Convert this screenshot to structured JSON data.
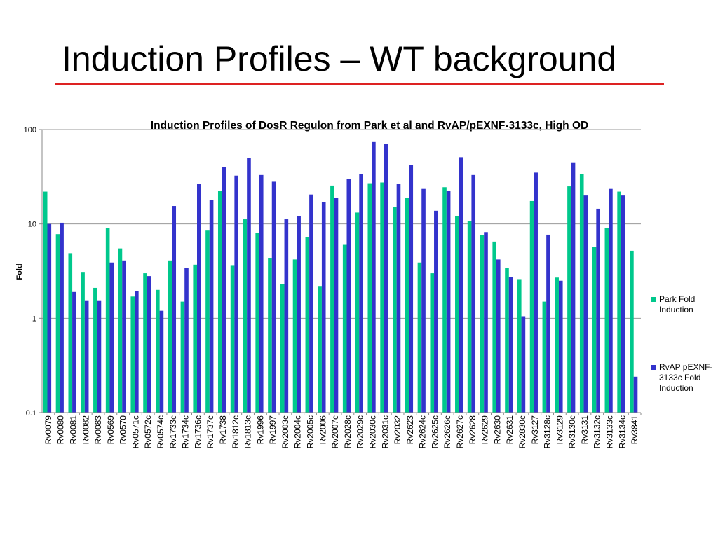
{
  "slide": {
    "title": "Induction Profiles – WT background"
  },
  "colors": {
    "title_rule": "#dd2222",
    "series_park": "#00c88c",
    "series_rvap": "#3333cc",
    "grid": "#999999"
  },
  "chart_data": {
    "type": "bar",
    "title": "Induction Profiles of DosR Regulon from Park et al and RvAP/pEXNF-3133c, High OD",
    "ylabel": "Fold",
    "xlabel": "",
    "yscale": "log",
    "ylim": [
      0.1,
      100
    ],
    "yticks": [
      "0.1",
      "1",
      "10",
      "100"
    ],
    "ytick_values": [
      0.1,
      1,
      10,
      100
    ],
    "grid": true,
    "legend_position": "right",
    "categories": [
      "Rv0079",
      "Rv0080",
      "Rv0081",
      "Rv0082",
      "Rv0083",
      "Rv0569",
      "Rv0570",
      "Rv0571c",
      "Rv0572c",
      "Rv0574c",
      "Rv1733c",
      "Rv1734c",
      "Rv1736c",
      "Rv1737c",
      "Rv1738",
      "Rv1812c",
      "Rv1813c",
      "Rv1996",
      "Rv1997",
      "Rv2003c",
      "Rv2004c",
      "Rv2005c",
      "Rv2006",
      "Rv2007c",
      "Rv2028c",
      "Rv2029c",
      "Rv2030c",
      "Rv2031c",
      "Rv2032",
      "Rv2623",
      "Rv2624c",
      "Rv2625c",
      "Rv2626c",
      "Rv2627c",
      "Rv2628",
      "Rv2629",
      "Rv2630",
      "Rv2631",
      "Rv2830c",
      "Rv3127",
      "Rv3128c",
      "Rv3129",
      "Rv3130c",
      "Rv3131",
      "Rv3132c",
      "Rv3133c",
      "Rv3134c",
      "Rv3841"
    ],
    "series": [
      {
        "name": "Park Fold Induction",
        "values": [
          22,
          7.8,
          4.9,
          3.1,
          2.1,
          9.0,
          5.5,
          1.7,
          3.0,
          2.0,
          4.1,
          1.5,
          3.7,
          8.5,
          22.5,
          3.6,
          11.2,
          8.0,
          4.3,
          2.3,
          4.2,
          7.3,
          2.2,
          25.5,
          6.0,
          13.2,
          27.0,
          27.5,
          15.0,
          19.0,
          3.9,
          3.0,
          24.5,
          12.2,
          10.7,
          7.6,
          6.5,
          3.4,
          2.6,
          17.5,
          1.5,
          2.7,
          25.0,
          34.0,
          5.7,
          9.0,
          22.0,
          5.2
        ]
      },
      {
        "name": "RvAP pEXNF-\n3133c Fold\nInduction",
        "values": [
          10.0,
          10.3,
          1.9,
          1.55,
          1.55,
          3.9,
          4.1,
          1.95,
          2.8,
          1.2,
          15.5,
          3.4,
          26.5,
          18.0,
          40.0,
          32.5,
          50.0,
          33.0,
          28.0,
          11.2,
          12.0,
          20.5,
          17.0,
          19.0,
          30.0,
          34.0,
          75.0,
          70.0,
          26.5,
          42.0,
          23.5,
          13.8,
          22.5,
          51.0,
          33.0,
          8.2,
          4.2,
          2.75,
          1.05,
          35.0,
          7.7,
          2.5,
          45.0,
          20.0,
          14.5,
          23.5,
          20.0,
          0.24
        ]
      }
    ]
  }
}
